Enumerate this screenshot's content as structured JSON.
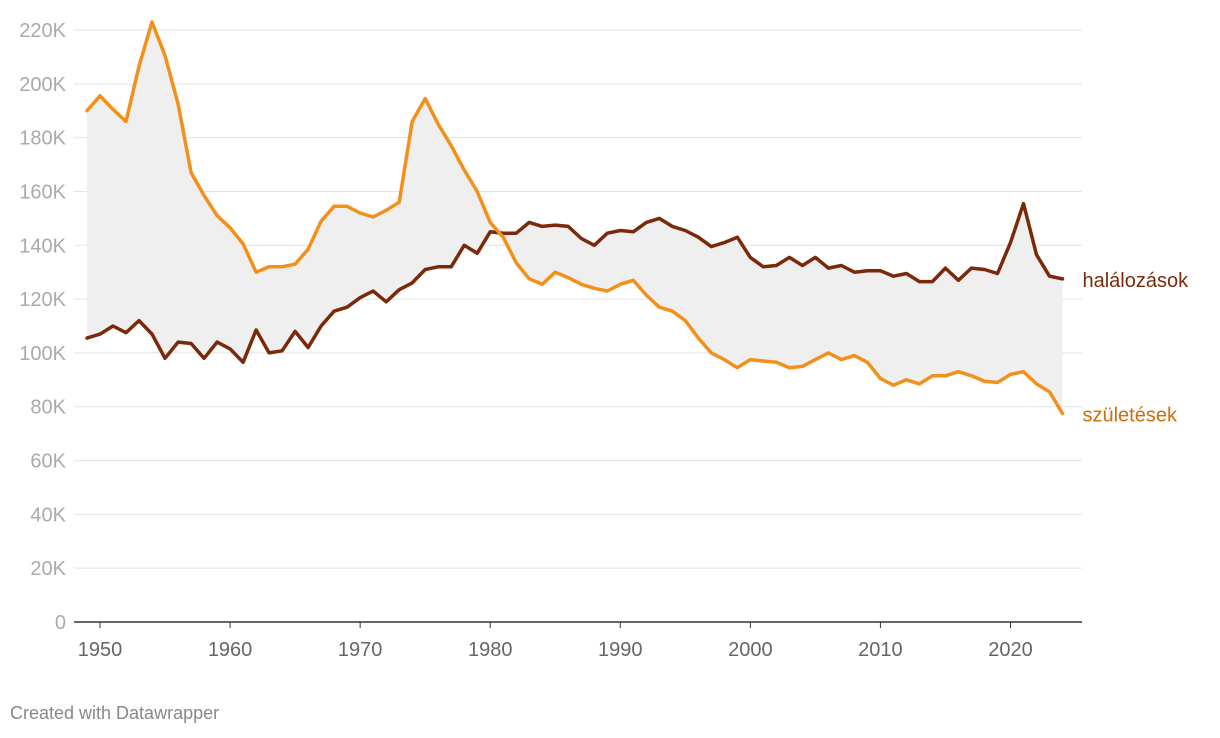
{
  "chart_data": {
    "type": "area",
    "title": "",
    "xlabel": "",
    "ylabel": "",
    "xlim": [
      1948,
      2025.5
    ],
    "ylim": [
      0,
      220000
    ],
    "y_ticks": [
      0,
      20000,
      40000,
      60000,
      80000,
      100000,
      120000,
      140000,
      160000,
      180000,
      200000,
      220000
    ],
    "y_tick_labels": [
      "0",
      "20K",
      "40K",
      "60K",
      "80K",
      "100K",
      "120K",
      "140K",
      "160K",
      "180K",
      "200K",
      "220K"
    ],
    "x_ticks": [
      1950,
      1960,
      1970,
      1980,
      1990,
      2000,
      2010,
      2020
    ],
    "x_tick_labels": [
      "1950",
      "1960",
      "1970",
      "1980",
      "1990",
      "2000",
      "2010",
      "2020"
    ],
    "x": [
      1949,
      1950,
      1951,
      1952,
      1953,
      1954,
      1955,
      1956,
      1957,
      1958,
      1959,
      1960,
      1961,
      1962,
      1963,
      1964,
      1965,
      1966,
      1967,
      1968,
      1969,
      1970,
      1971,
      1972,
      1973,
      1974,
      1975,
      1976,
      1977,
      1978,
      1979,
      1980,
      1981,
      1982,
      1983,
      1984,
      1985,
      1986,
      1987,
      1988,
      1989,
      1990,
      1991,
      1992,
      1993,
      1994,
      1995,
      1996,
      1997,
      1998,
      1999,
      2000,
      2001,
      2002,
      2003,
      2004,
      2005,
      2006,
      2007,
      2008,
      2009,
      2010,
      2011,
      2012,
      2013,
      2014,
      2015,
      2016,
      2017,
      2018,
      2019,
      2020,
      2021,
      2022,
      2023,
      2024
    ],
    "series": [
      {
        "name": "halálozások",
        "color": "#7a2a0a",
        "values": [
          105500,
          107000,
          110000,
          107500,
          112000,
          107000,
          98000,
          104000,
          103500,
          98000,
          104000,
          101500,
          96500,
          108500,
          100000,
          100800,
          108000,
          102000,
          110000,
          115500,
          117000,
          120500,
          123000,
          119000,
          123500,
          126000,
          131000,
          132000,
          132000,
          140000,
          137000,
          145000,
          144500,
          144500,
          148500,
          147000,
          147500,
          147000,
          142500,
          140000,
          144500,
          145500,
          145000,
          148500,
          150000,
          147000,
          145500,
          143000,
          139500,
          141000,
          143000,
          135500,
          132000,
          132500,
          135500,
          132500,
          135500,
          131500,
          132500,
          130000,
          130500,
          130500,
          128500,
          129500,
          126500,
          126500,
          131500,
          127000,
          131500,
          131000,
          129500,
          141000,
          155500,
          136500,
          128500,
          127500
        ]
      },
      {
        "name": "születések",
        "color": "#f2901b",
        "values": [
          190000,
          195500,
          190500,
          186000,
          206500,
          223000,
          210500,
          192500,
          167000,
          158500,
          151000,
          146500,
          140500,
          130000,
          132000,
          132000,
          133000,
          138500,
          149000,
          154500,
          154500,
          152000,
          150500,
          153000,
          156000,
          186000,
          194500,
          185000,
          177000,
          168000,
          160000,
          148500,
          143000,
          133500,
          127500,
          125500,
          130000,
          128000,
          125500,
          124000,
          123000,
          125500,
          127000,
          121500,
          117000,
          115500,
          112000,
          105500,
          100000,
          97500,
          94500,
          97500,
          97000,
          96500,
          94500,
          95000,
          97500,
          100000,
          97500,
          99000,
          96500,
          90500,
          88000,
          90000,
          88500,
          91500,
          91500,
          93000,
          91500,
          89500,
          89000,
          92000,
          93000,
          88500,
          85500,
          77500
        ]
      }
    ],
    "fill_color": "#efefef",
    "credit": "Created with Datawrapper"
  }
}
